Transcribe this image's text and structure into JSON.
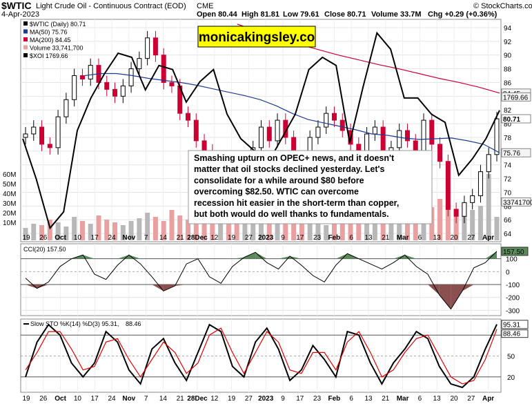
{
  "header": {
    "symbol": "$WTIC",
    "full_name": "Light Crude Oil - Continuous Contract (EOD)",
    "exchange": "CME",
    "date": "4-Apr-2023",
    "open": "Open 80.44",
    "high": "High 81.81",
    "low": "Low 79.61",
    "close": "Close 80.71",
    "volume": "Volume 33.7M",
    "change": "Chg +0.29 (+0.36%)",
    "credit": "© StockCharts.com"
  },
  "watermark": "monicakingsley.co",
  "annotation": [
    "Smashing upturn on OPEC+ news, and it doesn't",
    "matter that oil stocks declined yesterday. Let's",
    "consolidate for a while around $80 before",
    "overcoming $82.50. WTIC can overcome",
    "recession hit easier in the short-term than copper,",
    "but both would do well thanks to fundamentals."
  ],
  "colors": {
    "up": "#000000",
    "down": "#cc0033",
    "ma50": "#1f3a93",
    "ma200": "#cc0033",
    "xoi": "#000000",
    "volume": "#e8a0a0",
    "cci_pos": "#5a8a5a",
    "cci_neg": "#8a5050",
    "sto_k": "#000000",
    "sto_d": "#e00000"
  },
  "chart_data": [
    {
      "type": "line",
      "title": "$WTIC (Daily) 80.71",
      "legend": [
        {
          "name": "$WTIC (Daily) 80.71",
          "color": "#000000"
        },
        {
          "name": "MA(50) 75.76",
          "color": "#1f3a93"
        },
        {
          "name": "MA(200) 84.45",
          "color": "#cc0033"
        },
        {
          "name": "Volume 33,741,700",
          "color": "#e8a0a0"
        },
        {
          "name": "$XOI 1769.66",
          "color": "#000000"
        }
      ],
      "ylim": [
        63,
        95
      ],
      "y_ticks": [
        64,
        66,
        68,
        70,
        72,
        74,
        76,
        78,
        80,
        82,
        84,
        86,
        88,
        90,
        92,
        94
      ],
      "volume_ticks": [
        "10M",
        "20M",
        "30M",
        "40M",
        "50M",
        "60M"
      ],
      "x_tick_labels": [
        "19",
        "26",
        "Oct",
        "10",
        "17",
        "24",
        "Nov",
        "7",
        "14",
        "21",
        "28Dec",
        "12",
        "19",
        "27",
        "2023",
        "9",
        "17",
        "23",
        "Feb",
        "6",
        "13",
        "21",
        "Mar",
        "6",
        "13",
        "20",
        "27",
        "Apr"
      ],
      "price_tags": [
        "84.45",
        "1769.66",
        "80.71",
        "75.76",
        "33741700"
      ],
      "wtic_close": [
        78.5,
        79.5,
        77.0,
        76.5,
        81.0,
        83.5,
        87.0,
        86.5,
        88.5,
        86.0,
        85.0,
        84.0,
        85.5,
        88.0,
        89.5,
        92.5,
        90.0,
        86.0,
        85.5,
        81.5,
        80.5,
        77.5,
        76.0,
        74.0,
        74.5,
        72.5,
        71.5,
        73.5,
        76.5,
        79.5,
        77.5,
        80.5,
        78.0,
        74.5,
        73.5,
        78.0,
        79.5,
        81.5,
        80.5,
        79.0,
        77.0,
        76.0,
        78.5,
        79.5,
        76.0,
        76.5,
        79.0,
        77.5,
        76.0,
        80.5,
        77.0,
        74.5,
        67.5,
        66.5,
        68.5,
        69.5,
        73.0,
        75.5,
        80.71
      ],
      "ma50": [
        87.0,
        87.3,
        87.3,
        87.0,
        86.6,
        86.3,
        86.0,
        85.6,
        85.1,
        84.6,
        84.1,
        83.5,
        82.6,
        81.5,
        80.6,
        80.1,
        79.6,
        79.1,
        78.5,
        78.3,
        77.9,
        77.7,
        77.8,
        77.9,
        77.5,
        77.0,
        75.76
      ],
      "ma200": [
        94.5,
        93.5,
        92.5,
        91.6,
        90.8,
        90.0,
        89.3,
        88.6,
        88.0,
        87.3,
        86.6,
        86.0,
        85.3,
        84.45
      ],
      "xoi": [
        1700,
        1600,
        1480,
        1520,
        1720,
        1800,
        1860,
        1910,
        1900,
        1820,
        1880,
        1870,
        1790,
        1840,
        1870,
        1760,
        1700,
        1670,
        1640,
        1700,
        1760,
        1870,
        1900,
        1880,
        1690,
        1830,
        1960,
        1920,
        1800,
        1800,
        1760,
        1740,
        1610,
        1650,
        1700,
        1769.66
      ]
    },
    {
      "type": "line",
      "title": "CCI(20) 157.50",
      "ylim": [
        -330,
        200
      ],
      "y_ticks": [
        100,
        0,
        -100,
        -200,
        -300
      ],
      "values": [
        -50,
        -130,
        -80,
        40,
        100,
        130,
        -20,
        -60,
        50,
        130,
        60,
        -40,
        -150,
        -110,
        60,
        100,
        -40,
        -90,
        40,
        110,
        150,
        70,
        20,
        120,
        50,
        -30,
        -80,
        50,
        140,
        100,
        60,
        20,
        70,
        130,
        40,
        -20,
        -180,
        -290,
        -150,
        30,
        70,
        157.5
      ]
    },
    {
      "type": "line",
      "title": "Slow STO %K(14) %D(3) 95.31, 88.46",
      "ylim": [
        0,
        100
      ],
      "y_ticks": [
        80,
        50,
        20
      ],
      "series": [
        {
          "name": "%K(14)",
          "values": [
            20,
            70,
            95,
            80,
            40,
            20,
            40,
            85,
            70,
            30,
            10,
            60,
            75,
            40,
            15,
            55,
            95,
            85,
            35,
            20,
            70,
            90,
            60,
            15,
            30,
            65,
            45,
            20,
            85,
            80,
            40,
            10,
            40,
            60,
            85,
            75,
            35,
            10,
            5,
            20,
            60,
            95.31
          ]
        },
        {
          "name": "%D(3)",
          "values": [
            30,
            55,
            85,
            85,
            60,
            30,
            35,
            70,
            75,
            45,
            20,
            45,
            70,
            55,
            25,
            40,
            80,
            90,
            55,
            25,
            55,
            85,
            70,
            30,
            25,
            55,
            55,
            30,
            70,
            85,
            55,
            20,
            30,
            55,
            75,
            80,
            50,
            20,
            10,
            15,
            45,
            88.46
          ]
        }
      ]
    }
  ]
}
